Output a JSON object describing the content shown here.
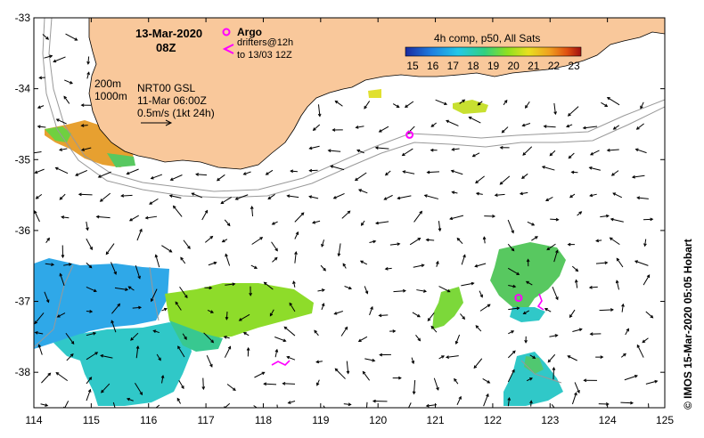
{
  "map": {
    "date": "13-Mar-2020",
    "time": "08Z",
    "argo_label": "Argo",
    "drifter_line1": "drifters@12h",
    "drifter_line2": "to 13/03 12Z",
    "contour_200": "200m",
    "contour_1000": "1000m",
    "product": "NRT00 GSL",
    "product_time": "11-Mar 06:00Z",
    "scale_label": "0.5m/s (1kt 24h)",
    "colorbar_title": "4h comp, p50, All Sats",
    "colorbar_ticks": [
      "15",
      "16",
      "17",
      "18",
      "19",
      "20",
      "21",
      "22",
      "23"
    ],
    "credit": "©  IMOS 15-Mar-2020 05:05 Hobart",
    "colors": {
      "land": "#f9c89b",
      "arrow": "#000000",
      "argo": "#ff00ff",
      "contour": "#999999"
    }
  },
  "axes": {
    "lon_ticks": [
      "114",
      "115",
      "116",
      "117",
      "118",
      "119",
      "120",
      "121",
      "122",
      "123",
      "124",
      "125"
    ],
    "lat_ticks": [
      "-33",
      "-34",
      "-35",
      "-36",
      "-37",
      "-38"
    ],
    "lon_range": [
      114,
      125
    ],
    "lat_range": [
      -38.5,
      -33
    ]
  },
  "argo_floats": [
    {
      "lon": 120.55,
      "lat": -34.65
    },
    {
      "lon": 122.45,
      "lat": -36.95
    }
  ]
}
